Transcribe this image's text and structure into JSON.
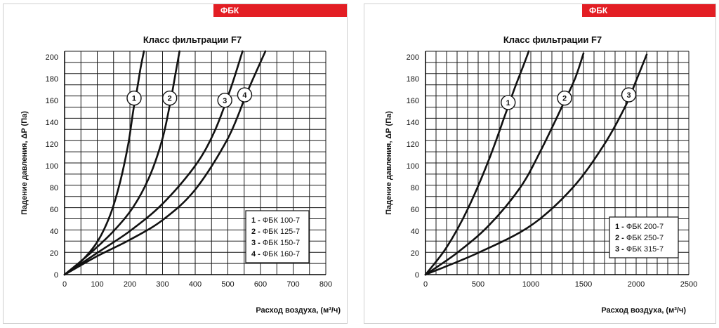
{
  "brand": {
    "label": "ФБК",
    "color": "#e31e24"
  },
  "chart_data": [
    {
      "type": "line",
      "title": "Класс фильтрации F7",
      "xlabel": "Расход воздуха, (м³/ч)",
      "ylabel": "Падение давления, ΔP (Па)",
      "xlim": [
        0,
        800
      ],
      "ylim": [
        0,
        205
      ],
      "xticks": [
        0,
        100,
        200,
        300,
        400,
        500,
        600,
        700,
        800
      ],
      "xtick_labels": [
        "0",
        "100",
        "200",
        "300",
        "400",
        "500",
        "600",
        "700",
        "800"
      ],
      "yticks": [
        0,
        20,
        40,
        60,
        80,
        100,
        120,
        140,
        160,
        180,
        200
      ],
      "ytick_labels": [
        "0",
        "20",
        "40",
        "60",
        "80",
        "100",
        "120",
        "140",
        "160",
        "180",
        "200"
      ],
      "legend_position": "bottom-right",
      "series": [
        {
          "id": "1",
          "name": "ФБК 100-7",
          "marker_y": 162,
          "x": [
            0,
            50,
            100,
            140,
            170,
            195,
            210,
            222,
            233,
            243
          ],
          "y": [
            0,
            12,
            30,
            55,
            85,
            120,
            150,
            170,
            190,
            205
          ]
        },
        {
          "id": "2",
          "name": "ФБК 125-7",
          "marker_y": 162,
          "x": [
            0,
            80,
            150,
            210,
            260,
            300,
            325,
            340,
            352
          ],
          "y": [
            0,
            20,
            40,
            62,
            90,
            125,
            160,
            185,
            205
          ]
        },
        {
          "id": "3",
          "name": "ФБК 150-7",
          "marker_y": 160,
          "x": [
            0,
            100,
            200,
            300,
            400,
            460,
            510,
            545
          ],
          "y": [
            0,
            20,
            40,
            65,
            100,
            132,
            172,
            205
          ]
        },
        {
          "id": "4",
          "name": "ФБК 160-7",
          "marker_y": 165,
          "x": [
            0,
            100,
            200,
            300,
            400,
            500,
            560,
            615
          ],
          "y": [
            0,
            17,
            32,
            50,
            78,
            125,
            168,
            205
          ]
        }
      ]
    },
    {
      "type": "line",
      "title": "Класс фильтрации F7",
      "xlabel": "Расход воздуха, (м³/ч)",
      "ylabel": "Падение давления, ΔP (Па)",
      "xlim": [
        0,
        2500
      ],
      "ylim": [
        0,
        205
      ],
      "xticks": [
        0,
        500,
        1000,
        1500,
        2000,
        2500
      ],
      "xtick_labels": [
        "0",
        "500",
        "1000",
        "1500",
        "2000",
        "2500"
      ],
      "yticks": [
        0,
        20,
        40,
        60,
        80,
        100,
        120,
        140,
        160,
        180,
        200
      ],
      "ytick_labels": [
        "0",
        "20",
        "40",
        "60",
        "80",
        "100",
        "120",
        "140",
        "160",
        "180",
        "200"
      ],
      "legend_position": "bottom-right",
      "series": [
        {
          "id": "1",
          "name": "ФБК 200-7",
          "marker_y": 158,
          "x": [
            0,
            200,
            400,
            600,
            750,
            850,
            930,
            980
          ],
          "y": [
            0,
            25,
            60,
            105,
            145,
            172,
            192,
            205
          ]
        },
        {
          "id": "2",
          "name": "ФБК 250-7",
          "marker_y": 162,
          "x": [
            0,
            300,
            600,
            900,
            1100,
            1300,
            1420,
            1500
          ],
          "y": [
            0,
            20,
            45,
            80,
            115,
            155,
            180,
            203
          ]
        },
        {
          "id": "3",
          "name": "ФБК 315-7",
          "marker_y": 165,
          "x": [
            0,
            500,
            1000,
            1400,
            1700,
            1900,
            2000,
            2100
          ],
          "y": [
            0,
            20,
            45,
            80,
            120,
            155,
            178,
            202
          ]
        }
      ]
    }
  ]
}
